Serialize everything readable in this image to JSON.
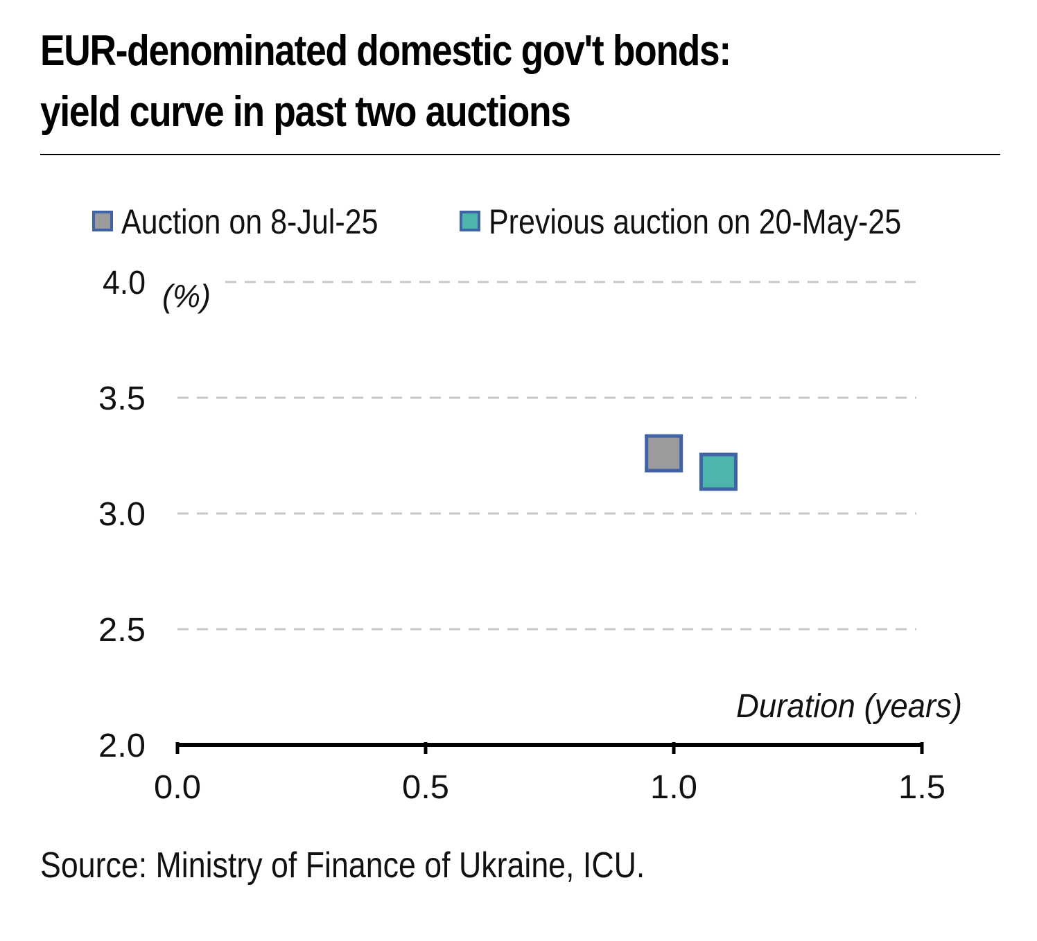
{
  "title_line1": "EUR-denominated domestic gov't bonds:",
  "title_line2": "yield curve in past two auctions",
  "source": "Source: Ministry of Finance of Ukraine, ICU.",
  "colors": {
    "gray_fill": "#9b9b9b",
    "teal_fill": "#4db6ac",
    "marker_border": "#3f63a4",
    "grid": "#c8c8c8",
    "axis": "#000000"
  },
  "chart_data": {
    "type": "scatter",
    "xlabel": "Duration (years)",
    "ylabel": "(%)",
    "xlim": [
      0.0,
      1.5
    ],
    "ylim": [
      2.0,
      4.0
    ],
    "x_ticks": [
      "0.0",
      "0.5",
      "1.0",
      "1.5"
    ],
    "y_ticks": [
      "2.0",
      "2.5",
      "3.0",
      "3.5",
      "4.0"
    ],
    "grid": "horizontal dashed",
    "legend_position": "top",
    "series": [
      {
        "name": "Auction on 8-Jul-25",
        "color": "#9b9b9b",
        "points": [
          {
            "x": 0.98,
            "y": 3.26
          }
        ]
      },
      {
        "name": "Previous auction on 20-May-25",
        "color": "#4db6ac",
        "points": [
          {
            "x": 1.09,
            "y": 3.18
          }
        ]
      }
    ]
  }
}
